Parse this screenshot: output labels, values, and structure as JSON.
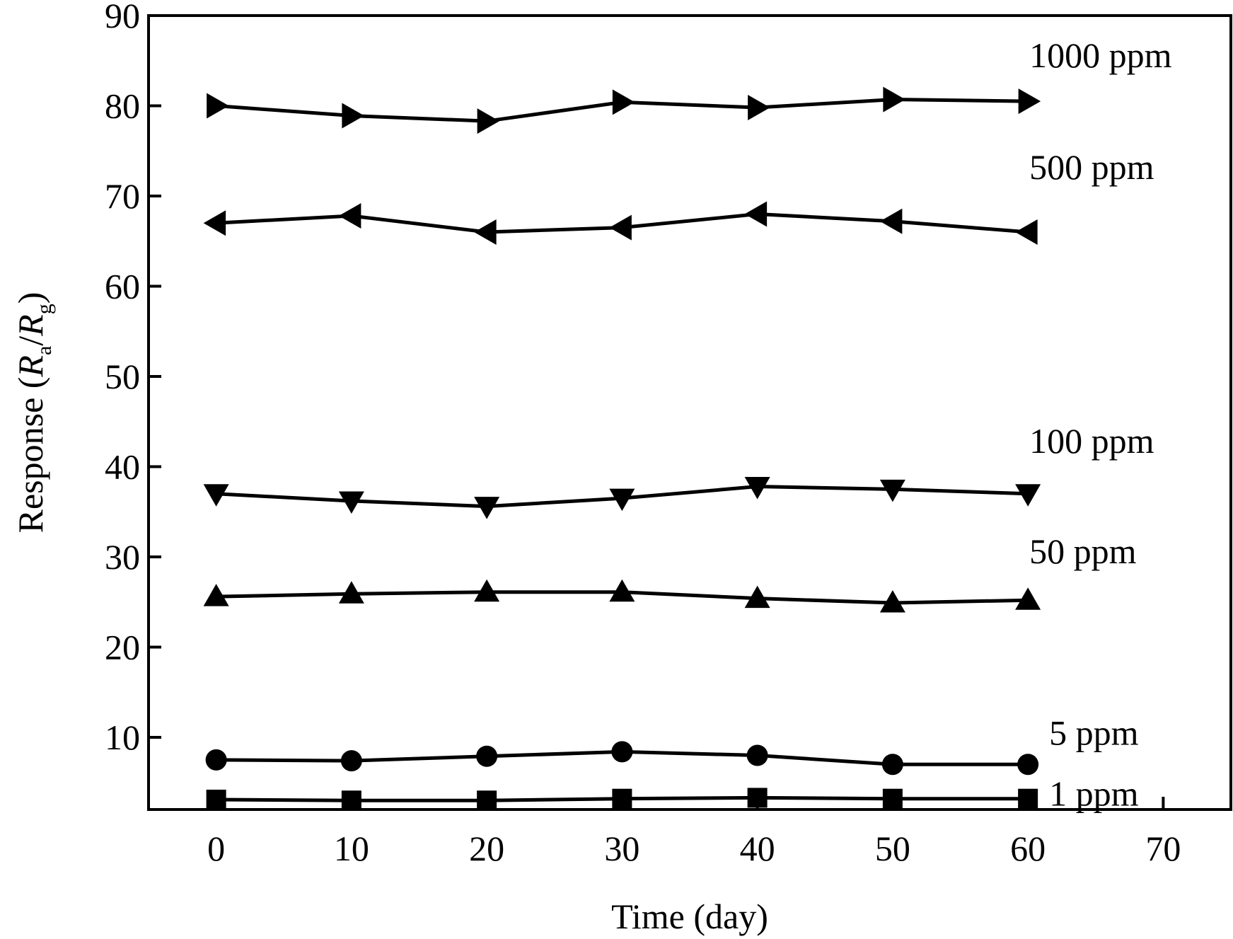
{
  "chart_data": {
    "type": "line",
    "xlabel": "Time (day)",
    "ylabel": {
      "prefix": "Response (",
      "var1": "R",
      "sub1": "a",
      "slash": "/",
      "var2": "R",
      "sub2": "g",
      "suffix": ")"
    },
    "xlim": [
      -5,
      75
    ],
    "ylim": [
      2,
      90
    ],
    "xticks": [
      0,
      10,
      20,
      30,
      40,
      50,
      60,
      70
    ],
    "yticks": [
      10,
      20,
      30,
      40,
      50,
      60,
      70,
      80,
      90
    ],
    "grid": false,
    "legend": "none",
    "x": [
      0,
      10,
      20,
      30,
      40,
      50,
      60
    ],
    "series": [
      {
        "name": "1000 ppm",
        "marker": "triangle-right",
        "values": [
          80.0,
          78.9,
          78.3,
          80.4,
          79.8,
          80.7,
          80.5
        ]
      },
      {
        "name": "500 ppm",
        "marker": "triangle-left",
        "values": [
          67.0,
          67.8,
          66.0,
          66.5,
          68.0,
          67.2,
          66.0
        ]
      },
      {
        "name": "100 ppm",
        "marker": "triangle-down",
        "values": [
          37.0,
          36.2,
          35.6,
          36.5,
          37.8,
          37.5,
          37.0
        ]
      },
      {
        "name": "50 ppm",
        "marker": "triangle-up",
        "values": [
          25.6,
          25.9,
          26.1,
          26.1,
          25.4,
          24.9,
          25.2
        ]
      },
      {
        "name": "5 ppm",
        "marker": "circle",
        "values": [
          7.5,
          7.4,
          7.9,
          8.4,
          8.0,
          7.0,
          7.0
        ]
      },
      {
        "name": "1 ppm",
        "marker": "square",
        "values": [
          3.1,
          3.0,
          3.0,
          3.2,
          3.3,
          3.2,
          3.2
        ]
      }
    ]
  }
}
